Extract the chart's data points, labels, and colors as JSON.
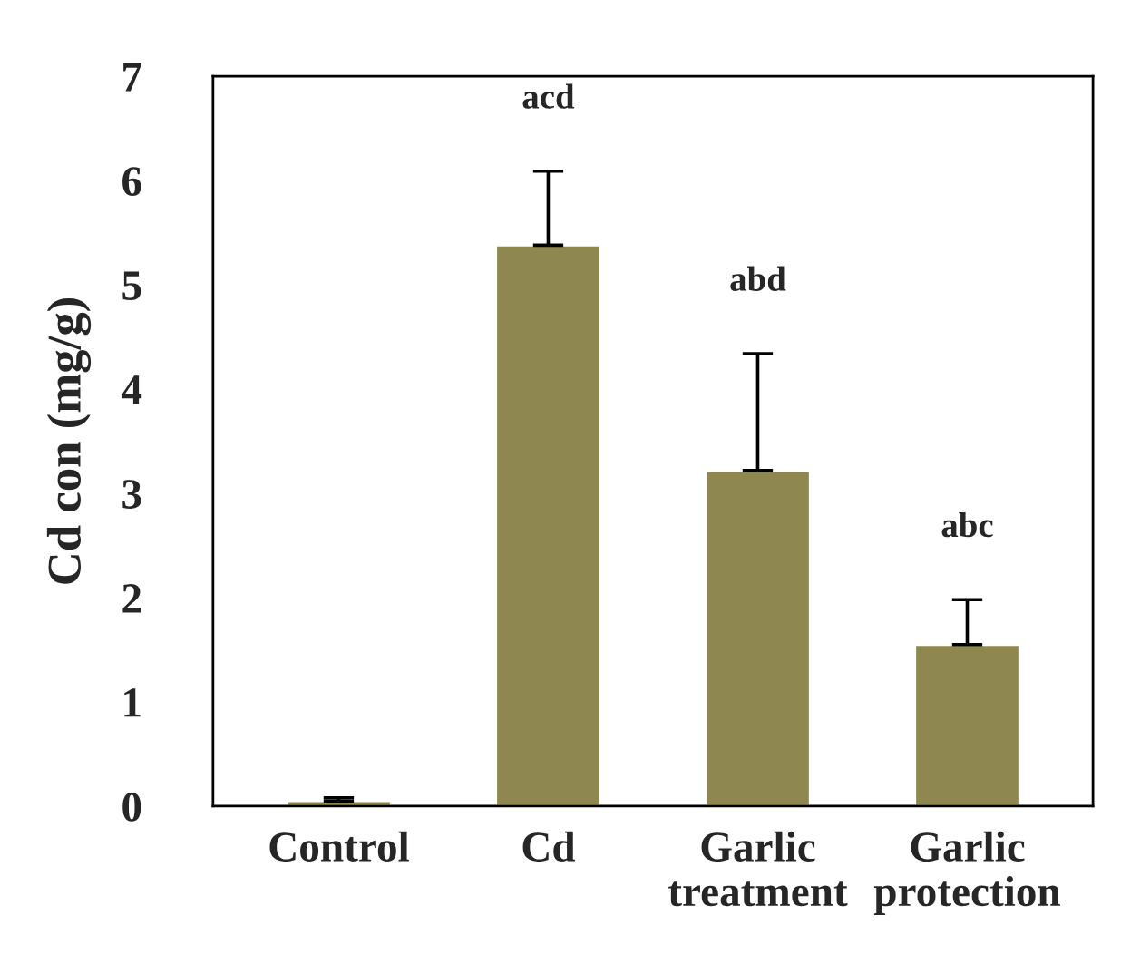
{
  "chart_data": {
    "type": "bar",
    "ylabel": "Cd con (mg/g)",
    "categories": [
      "Control",
      "Cd",
      "Garlic\ntreatment",
      "Garlic\nprotection"
    ],
    "values": [
      0.05,
      5.38,
      3.22,
      1.55
    ],
    "errors": [
      [
        0.05,
        0.08
      ],
      [
        5.38,
        6.09
      ],
      [
        3.22,
        4.34
      ],
      [
        1.55,
        1.98
      ]
    ],
    "color": "#8f8750",
    "ylim": [
      0,
      7
    ],
    "yticks": [
      0,
      1,
      2,
      3,
      4,
      5,
      6,
      7
    ],
    "grid": false,
    "annotations": [
      "acd",
      "abd",
      "abc"
    ]
  }
}
